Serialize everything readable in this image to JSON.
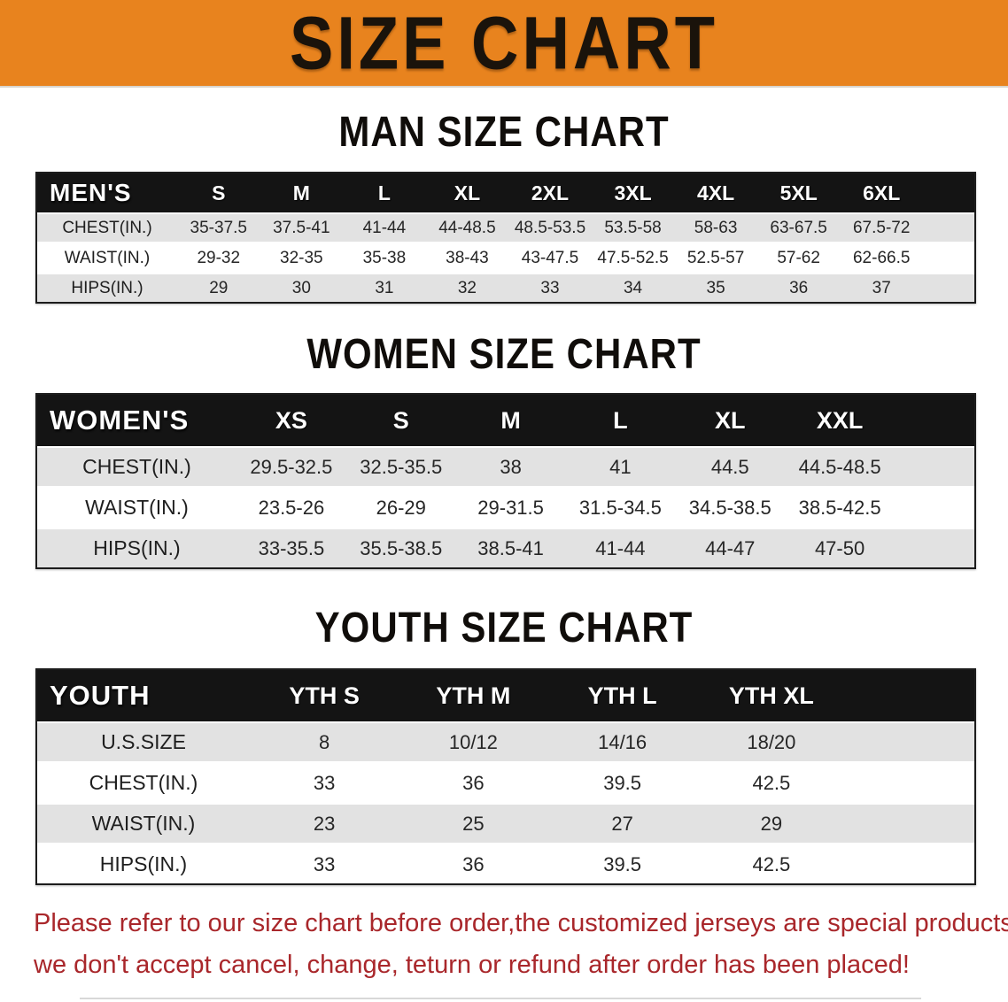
{
  "banner": {
    "title": "SIZE CHART"
  },
  "colors": {
    "banner_bg": "#E8831E",
    "banner_text": "#1A130B",
    "header_bg": "#141414",
    "header_text": "#FFFFFF",
    "row_gray": "#E2E2E2",
    "body_text": "#262626",
    "disclaimer_red": "#A9272B"
  },
  "sections": [
    {
      "name": "men",
      "heading": "MAN SIZE CHART",
      "header_label": "MEN'S",
      "columns": [
        "S",
        "M",
        "L",
        "XL",
        "2XL",
        "3XL",
        "4XL",
        "5XL",
        "6XL"
      ],
      "rows": [
        {
          "label": "CHEST(IN.)",
          "values": [
            "35-37.5",
            "37.5-41",
            "41-44",
            "44-48.5",
            "48.5-53.5",
            "53.5-58",
            "58-63",
            "63-67.5",
            "67.5-72"
          ]
        },
        {
          "label": "WAIST(IN.)",
          "values": [
            "29-32",
            "32-35",
            "35-38",
            "38-43",
            "43-47.5",
            "47.5-52.5",
            "52.5-57",
            "57-62",
            "62-66.5"
          ]
        },
        {
          "label": "HIPS(IN.)",
          "values": [
            "29",
            "30",
            "31",
            "32",
            "33",
            "34",
            "35",
            "36",
            "37"
          ]
        }
      ]
    },
    {
      "name": "women",
      "heading": "WOMEN SIZE CHART",
      "header_label": "WOMEN'S",
      "columns": [
        "XS",
        "S",
        "M",
        "L",
        "XL",
        "XXL"
      ],
      "rows": [
        {
          "label": "CHEST(IN.)",
          "values": [
            "29.5-32.5",
            "32.5-35.5",
            "38",
            "41",
            "44.5",
            "44.5-48.5"
          ]
        },
        {
          "label": "WAIST(IN.)",
          "values": [
            "23.5-26",
            "26-29",
            "29-31.5",
            "31.5-34.5",
            "34.5-38.5",
            "38.5-42.5"
          ]
        },
        {
          "label": "HIPS(IN.)",
          "values": [
            "33-35.5",
            "35.5-38.5",
            "38.5-41",
            "41-44",
            "44-47",
            "47-50"
          ]
        }
      ]
    },
    {
      "name": "youth",
      "heading": "YOUTH SIZE CHART",
      "header_label": "YOUTH",
      "columns": [
        "YTH S",
        "YTH M",
        "YTH L",
        "YTH XL"
      ],
      "rows": [
        {
          "label": "U.S.SIZE",
          "values": [
            "8",
            "10/12",
            "14/16",
            "18/20"
          ]
        },
        {
          "label": "CHEST(IN.)",
          "values": [
            "33",
            "36",
            "39.5",
            "42.5"
          ]
        },
        {
          "label": "WAIST(IN.)",
          "values": [
            "23",
            "25",
            "27",
            "29"
          ]
        },
        {
          "label": "HIPS(IN.)",
          "values": [
            "33",
            "36",
            "39.5",
            "42.5"
          ]
        }
      ]
    }
  ],
  "disclaimer": {
    "line1": "Please refer to our size chart before order,the customized jerseys are special products,",
    "line2": "we don't accept cancel, change, teturn or refund after order has been placed!"
  }
}
